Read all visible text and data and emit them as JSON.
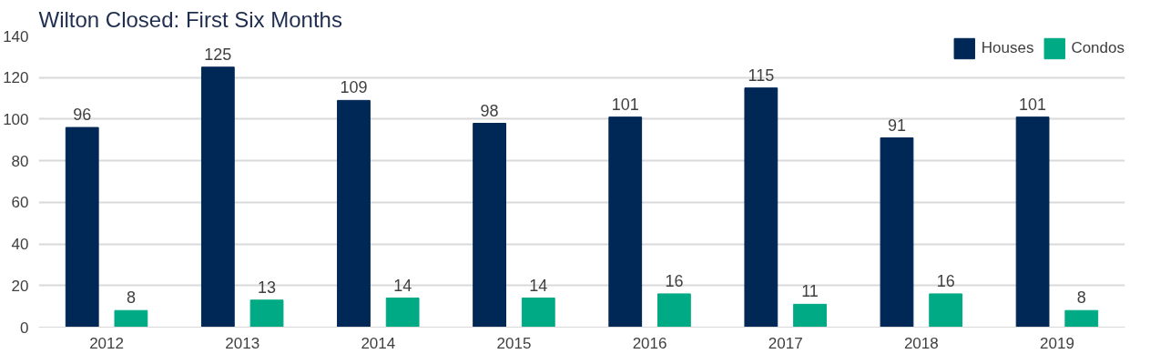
{
  "chart_data": {
    "type": "bar",
    "title": "Wilton Closed: First Six Months",
    "categories": [
      "2012",
      "2013",
      "2014",
      "2015",
      "2016",
      "2017",
      "2018",
      "2019"
    ],
    "series": [
      {
        "name": "Houses",
        "color": "#002856",
        "values": [
          96,
          125,
          109,
          98,
          101,
          115,
          91,
          101
        ]
      },
      {
        "name": "Condos",
        "color": "#00aa84",
        "values": [
          8,
          13,
          14,
          14,
          16,
          11,
          16,
          8
        ]
      }
    ],
    "ylim": [
      0,
      140
    ],
    "yticks": [
      0,
      20,
      40,
      60,
      80,
      100,
      120,
      140
    ],
    "grid": "y",
    "legend": "top right",
    "data_labels": true
  }
}
